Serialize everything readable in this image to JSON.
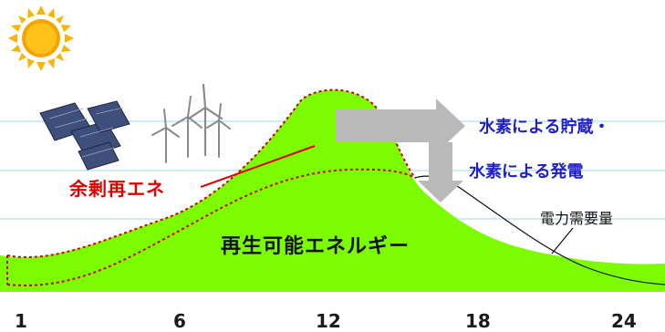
{
  "labels": {
    "surplus_renewable": "余剰再エネ",
    "renewable_energy": "再生可能エネルギー",
    "hydrogen_storage": "水素による貯蔵・",
    "hydrogen_generation": "水素による発電",
    "power_demand": "電力需要量"
  },
  "x_ticks": [
    "1",
    "6",
    "12",
    "18",
    "24"
  ],
  "icons": [
    "sun-icon",
    "solar-panels-icon",
    "wind-turbines-icon"
  ],
  "colors": {
    "renewable_fill": "#7CFC00",
    "surplus_border": "#cc0000",
    "surplus_text": "#e00000",
    "hydrogen_text": "#1f1fcc",
    "arrow": "#b9b9b9",
    "sun": "#f9b400",
    "grid": "#bfe6f2"
  }
}
